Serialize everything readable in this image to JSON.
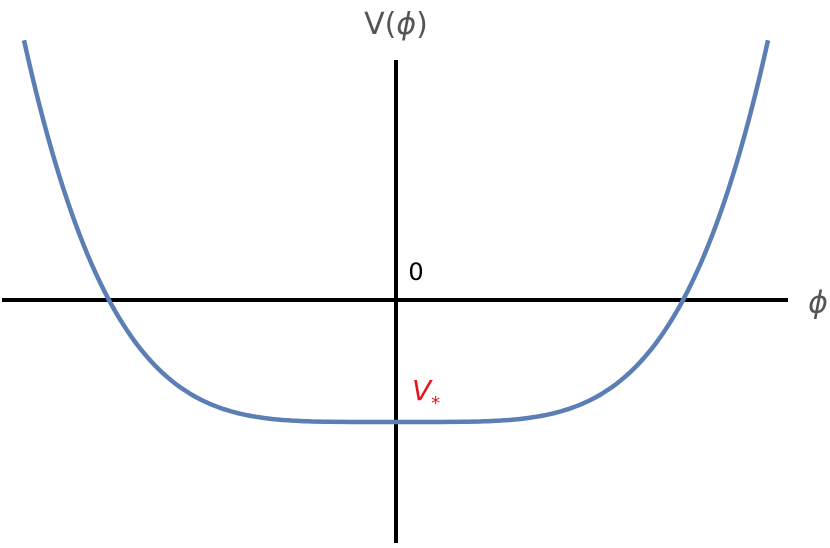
{
  "y_axis_label": {
    "name": "V(",
    "variable": "ϕ",
    "close": ")"
  },
  "x_axis_label": "ϕ",
  "origin_label": "0",
  "minimum_label": {
    "symbol": "V",
    "subscript": "*"
  }
}
